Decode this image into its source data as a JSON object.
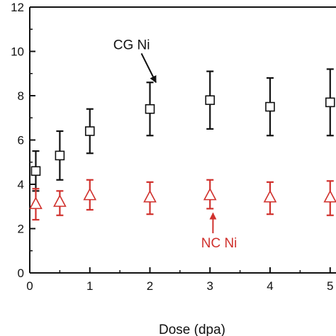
{
  "chart_data": {
    "type": "scatter",
    "title": "",
    "xlabel": "Dose (dpa)",
    "ylabel": "",
    "xlim": [
      0,
      5.05
    ],
    "ylim": [
      0,
      12
    ],
    "xticks": [
      "0",
      "1",
      "2",
      "3",
      "4",
      "5"
    ],
    "yticks": [
      "0",
      "2",
      "4",
      "6",
      "8",
      "10",
      "12"
    ],
    "grid": false,
    "series": [
      {
        "name": "CG Ni",
        "marker": "square",
        "color": "#111111",
        "points": [
          {
            "x": 0.1,
            "y": 4.6,
            "lo": 3.7,
            "hi": 5.5
          },
          {
            "x": 0.5,
            "y": 5.3,
            "lo": 4.2,
            "hi": 6.4
          },
          {
            "x": 1.0,
            "y": 6.4,
            "lo": 5.4,
            "hi": 7.4
          },
          {
            "x": 2.0,
            "y": 7.4,
            "lo": 6.2,
            "hi": 8.6
          },
          {
            "x": 3.0,
            "y": 7.8,
            "lo": 6.5,
            "hi": 9.1
          },
          {
            "x": 4.0,
            "y": 7.5,
            "lo": 6.2,
            "hi": 8.8
          },
          {
            "x": 5.0,
            "y": 7.7,
            "lo": 6.2,
            "hi": 9.2
          }
        ]
      },
      {
        "name": "NC Ni",
        "marker": "triangle",
        "color": "#d0312d",
        "points": [
          {
            "x": 0.1,
            "y": 3.1,
            "lo": 2.4,
            "hi": 3.8
          },
          {
            "x": 0.5,
            "y": 3.2,
            "lo": 2.6,
            "hi": 3.7
          },
          {
            "x": 1.0,
            "y": 3.5,
            "lo": 2.85,
            "hi": 4.2
          },
          {
            "x": 2.0,
            "y": 3.4,
            "lo": 2.65,
            "hi": 4.1
          },
          {
            "x": 3.0,
            "y": 3.5,
            "lo": 2.9,
            "hi": 4.2
          },
          {
            "x": 4.0,
            "y": 3.4,
            "lo": 2.65,
            "hi": 4.1
          },
          {
            "x": 5.0,
            "y": 3.4,
            "lo": 2.6,
            "hi": 4.15
          }
        ]
      }
    ],
    "annotations": [
      {
        "text": "CG Ni",
        "color": "#111111",
        "x": 2.0,
        "y": 10.1,
        "arrow_to": {
          "x": 2.1,
          "y": 8.6
        }
      },
      {
        "text": "NC Ni",
        "color": "#d0312d",
        "x": 3.45,
        "y": 1.15,
        "arrow_to": {
          "x": 3.05,
          "y": 2.7
        }
      }
    ]
  }
}
